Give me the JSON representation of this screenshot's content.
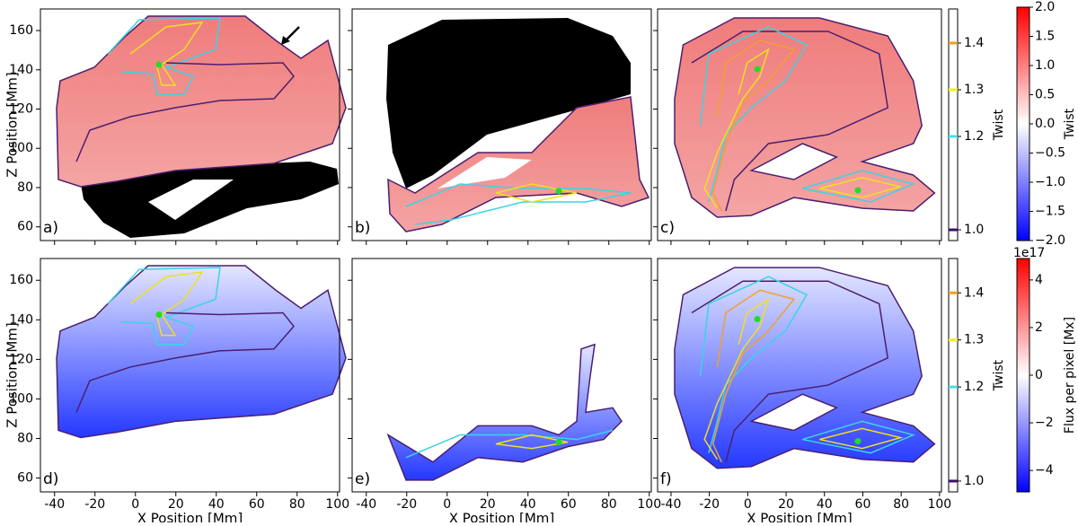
{
  "chart_data": [
    {
      "type": "image",
      "panel_label": "a)",
      "ylabel": "Z Position [Mm]",
      "xlim": [
        -47,
        101
      ],
      "ylim": [
        53,
        171
      ],
      "xticks": [
        -40,
        -20,
        0,
        20,
        40,
        60,
        80,
        100
      ],
      "yticks": [
        60,
        80,
        100,
        120,
        140,
        160
      ],
      "xticklabels": false,
      "yticklabels": true
    },
    {
      "type": "image",
      "panel_label": "b)",
      "xlim": [
        -47,
        101
      ],
      "ylim": [
        53,
        171
      ],
      "xticks": [
        -40,
        -20,
        0,
        20,
        40,
        60,
        80,
        100
      ],
      "yticks": [
        60,
        80,
        100,
        120,
        140,
        160
      ],
      "xticklabels": false,
      "yticklabels": false
    },
    {
      "type": "image",
      "panel_label": "c)",
      "xlim": [
        -47,
        101
      ],
      "ylim": [
        53,
        171
      ],
      "xticks": [
        -40,
        -20,
        0,
        20,
        40,
        60,
        80,
        100
      ],
      "yticks": [
        60,
        80,
        100,
        120,
        140,
        160
      ],
      "xticklabels": false,
      "yticklabels": false
    },
    {
      "type": "image",
      "panel_label": "d)",
      "ylabel": "Z Position [Mm]",
      "xlabel": "X Position [Mm]",
      "xlim": [
        -47,
        101
      ],
      "ylim": [
        53,
        171
      ],
      "xticks": [
        -40,
        -20,
        0,
        20,
        40,
        60,
        80,
        100
      ],
      "yticks": [
        60,
        80,
        100,
        120,
        140,
        160
      ],
      "xticklabels": true,
      "yticklabels": true
    },
    {
      "type": "image",
      "panel_label": "e)",
      "xlabel": "X Position [Mm]",
      "xlim": [
        -47,
        101
      ],
      "ylim": [
        53,
        171
      ],
      "xticks": [
        -40,
        -20,
        0,
        20,
        40,
        60,
        80,
        100
      ],
      "yticks": [
        60,
        80,
        100,
        120,
        140,
        160
      ],
      "xticklabels": true,
      "yticklabels": false
    },
    {
      "type": "image",
      "panel_label": "f)",
      "xlabel": "X Position [Mm]",
      "xlim": [
        -47,
        101
      ],
      "ylim": [
        53,
        171
      ],
      "xticks": [
        -40,
        -20,
        0,
        20,
        40,
        60,
        80,
        100
      ],
      "yticks": [
        60,
        80,
        100,
        120,
        140,
        160
      ],
      "xticklabels": true,
      "yticklabels": false
    },
    {
      "type": "levels",
      "label": "Twist",
      "ylim": [
        0.977,
        1.473
      ],
      "yticks": [
        {
          "value": 1,
          "label": "1.0"
        },
        1.2,
        1.3,
        1.4
      ],
      "colors": [
        "#3b0f6f",
        "#40e0e8",
        "#f0f020",
        "#f0a020"
      ]
    },
    {
      "type": "levels",
      "label": "Twist",
      "ylim": [
        0.977,
        1.473
      ],
      "yticks": [
        {
          "value": 1,
          "label": "1.0"
        },
        1.2,
        1.3,
        1.4
      ],
      "colors": [
        "#3b0f6f",
        "#40e0e8",
        "#f0f020",
        "#f0a020"
      ]
    },
    {
      "type": "colorbar",
      "label": "Twist",
      "ylim": [
        -2,
        2
      ],
      "yticks": [
        {
          "value": 2,
          "label": "2.0"
        },
        1.5,
        {
          "value": 1,
          "label": "1.0"
        },
        0.5,
        {
          "value": 0,
          "label": "0.0"
        },
        {
          "value": -0.5,
          "label": "−0.5"
        },
        {
          "value": -1,
          "label": "−1.0"
        },
        {
          "value": -1.5,
          "label": "−1.5"
        },
        {
          "value": -2,
          "label": "−2.0"
        }
      ],
      "colors": [
        "#0000ff",
        "#ffffff",
        "#ff0000"
      ]
    },
    {
      "type": "colorbar",
      "label": "Flux per pixel [Mx]",
      "offset_label": "1e17",
      "ylim": [
        -4.9,
        4.9
      ],
      "yticks": [
        {
          "value": -4,
          "label": "−4"
        },
        {
          "value": -2,
          "label": "−2"
        },
        0,
        2,
        4
      ],
      "colors": [
        "#0000ff",
        "#ffffff",
        "#ff0000"
      ]
    }
  ]
}
